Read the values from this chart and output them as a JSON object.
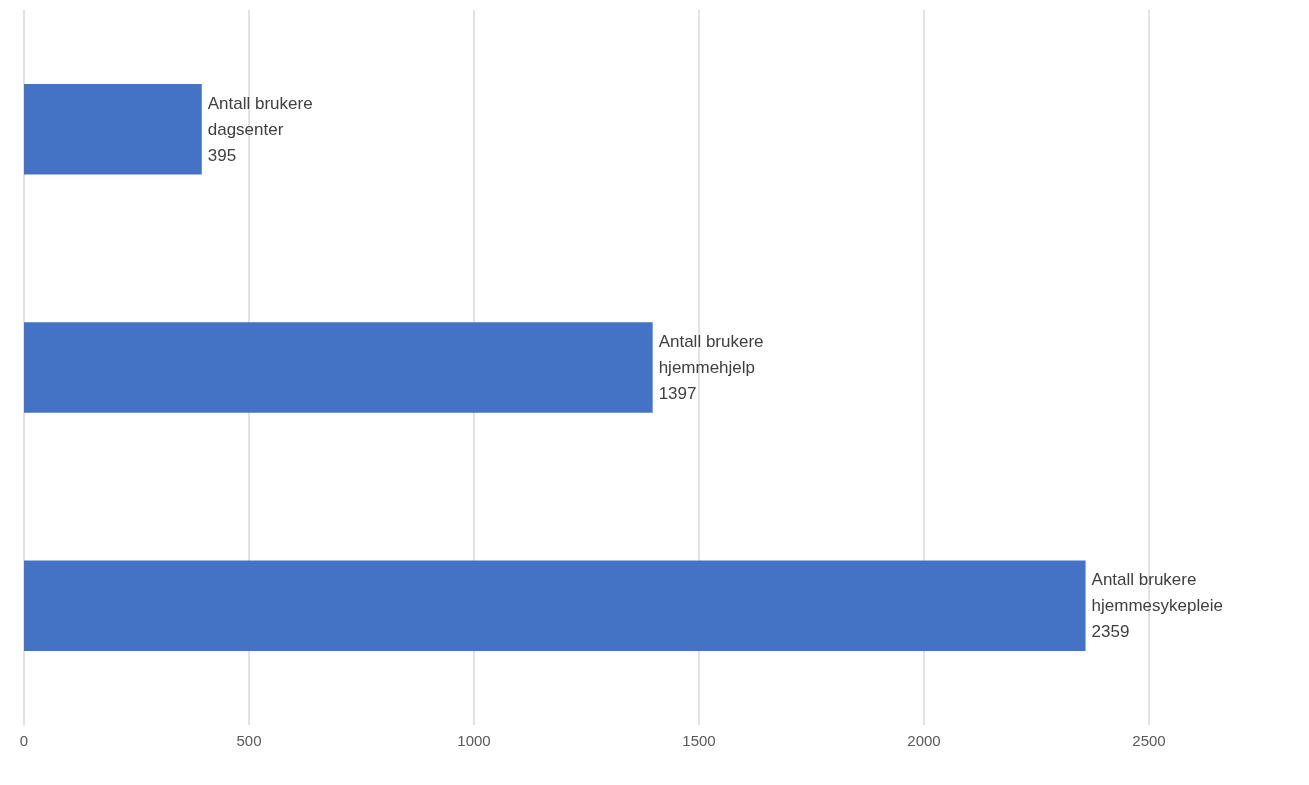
{
  "chart_data": {
    "type": "bar",
    "orientation": "horizontal",
    "categories": [
      "Antall brukere dagsenter",
      "Antall brukere hjemmehjelp",
      "Antall brukere hjemmesykepleie"
    ],
    "values": [
      395,
      1397,
      2359
    ],
    "color": "#4472c4",
    "xlim": [
      0,
      2500
    ],
    "xticks": [
      0,
      500,
      1000,
      1500,
      2000,
      2500
    ],
    "grid": "x",
    "tick_labels": "x",
    "data_labels": true
  }
}
